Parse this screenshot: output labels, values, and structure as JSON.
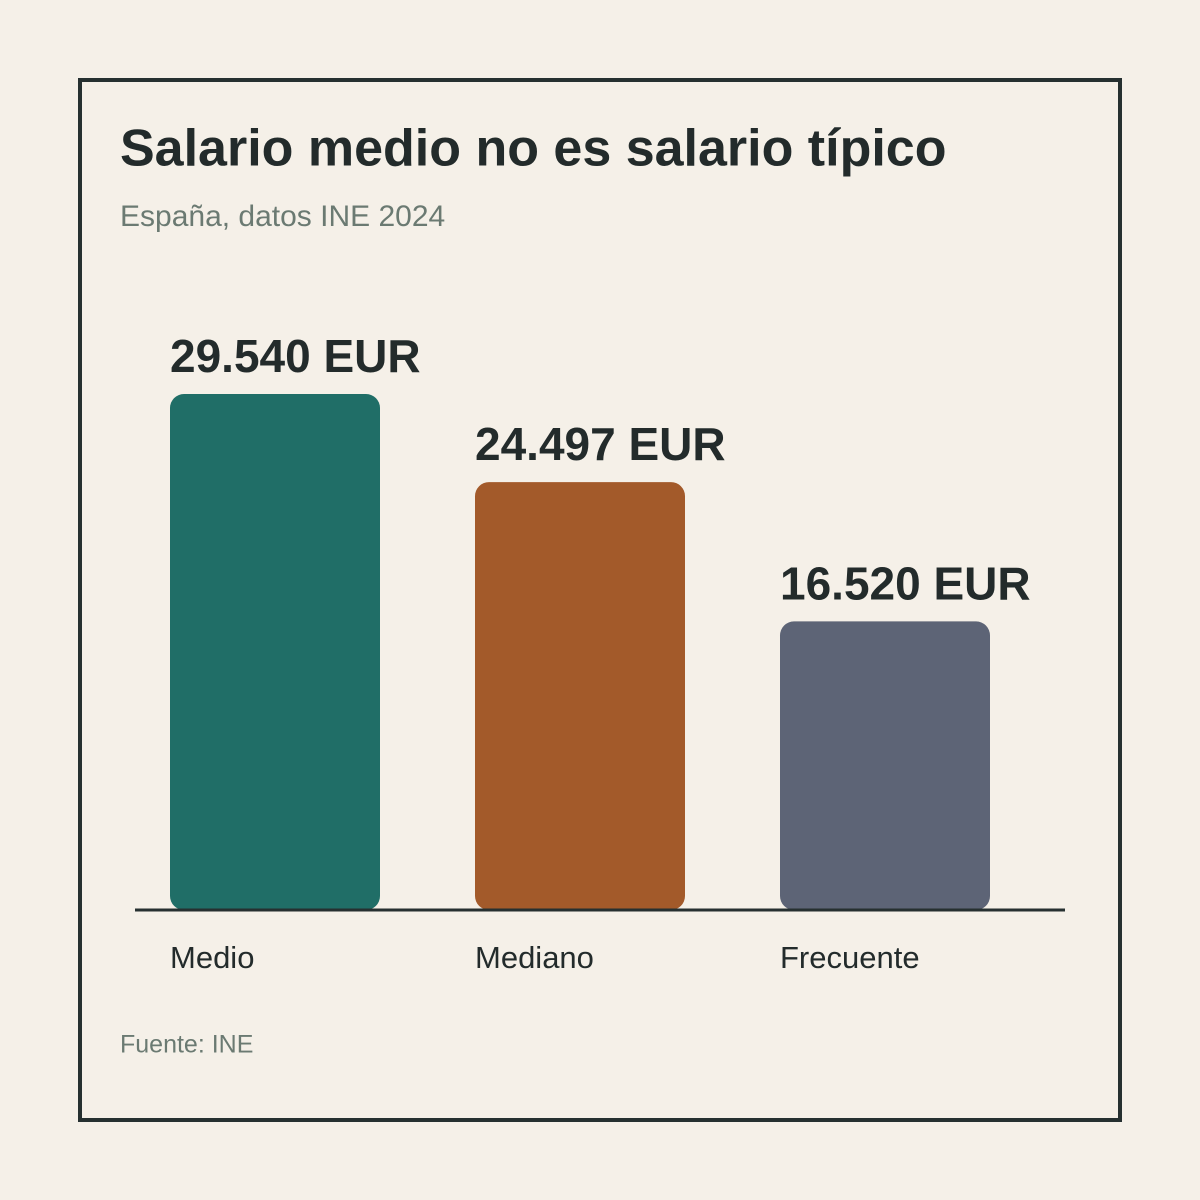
{
  "chart_data": {
    "type": "bar",
    "title": "Salario medio no es salario típico",
    "subtitle": "España, datos INE 2024",
    "categories": [
      "Medio",
      "Mediano",
      "Frecuente"
    ],
    "values": [
      29540,
      24497,
      16520
    ],
    "value_labels": [
      "29.540 EUR",
      "24.497 EUR",
      "16.520 EUR"
    ],
    "colors": [
      "#206e67",
      "#a35a2a",
      "#5d6476"
    ],
    "source": "Fuente: INE"
  }
}
